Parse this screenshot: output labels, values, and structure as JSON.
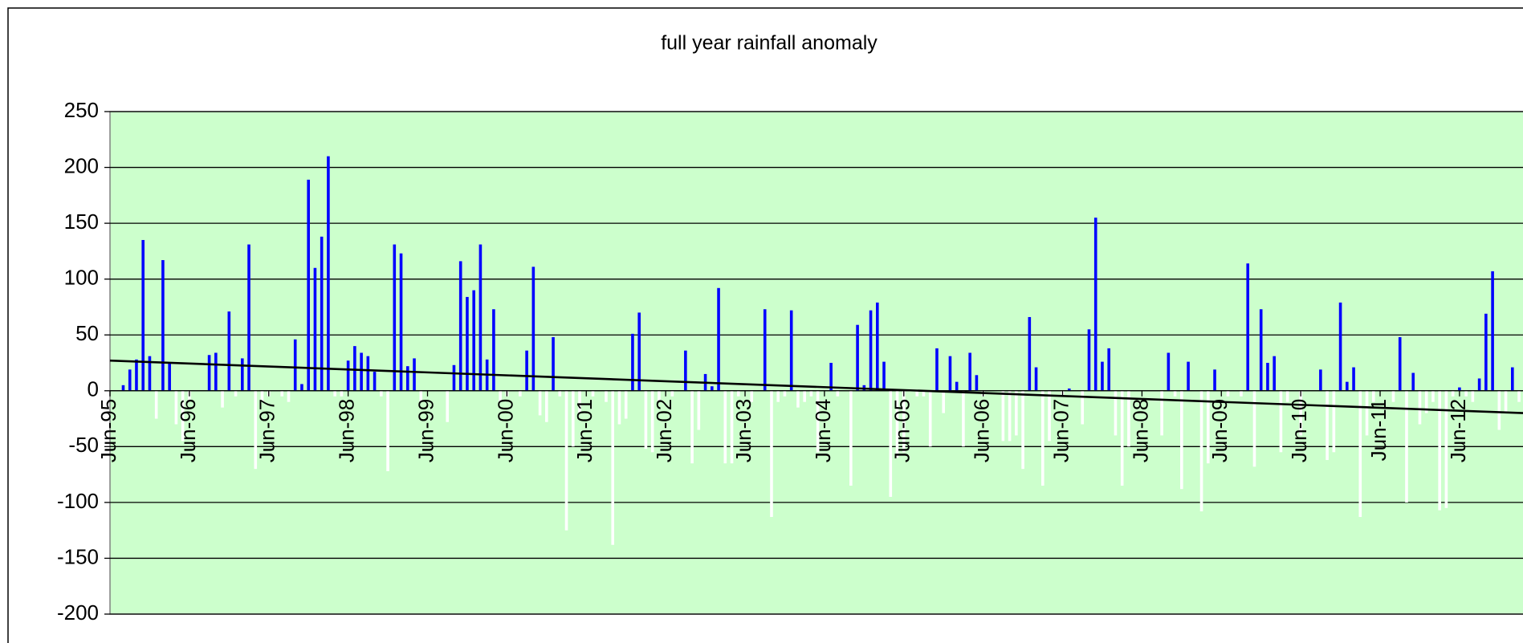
{
  "chart_data": {
    "type": "bar",
    "title": "full year rainfall anomaly",
    "categories": [
      "Jun-95",
      null,
      null,
      null,
      null,
      null,
      null,
      null,
      null,
      null,
      null,
      null,
      "Jun-96",
      null,
      null,
      null,
      null,
      null,
      null,
      null,
      null,
      null,
      null,
      null,
      "Jun-97",
      null,
      null,
      null,
      null,
      null,
      null,
      null,
      null,
      null,
      null,
      null,
      "Jun-98",
      null,
      null,
      null,
      null,
      null,
      null,
      null,
      null,
      null,
      null,
      null,
      "Jun-99",
      null,
      null,
      null,
      null,
      null,
      null,
      null,
      null,
      null,
      null,
      null,
      "Jun-00",
      null,
      null,
      null,
      null,
      null,
      null,
      null,
      null,
      null,
      null,
      null,
      "Jun-01",
      null,
      null,
      null,
      null,
      null,
      null,
      null,
      null,
      null,
      null,
      null,
      "Jun-02",
      null,
      null,
      null,
      null,
      null,
      null,
      null,
      null,
      null,
      null,
      null,
      "Jun-03",
      null,
      null,
      null,
      null,
      null,
      null,
      null,
      null,
      null,
      null,
      null,
      "Jun-04",
      null,
      null,
      null,
      null,
      null,
      null,
      null,
      null,
      null,
      null,
      null,
      "Jun-05",
      null,
      null,
      null,
      null,
      null,
      null,
      null,
      null,
      null,
      null,
      null,
      "Jun-06",
      null,
      null,
      null,
      null,
      null,
      null,
      null,
      null,
      null,
      null,
      null,
      "Jun-07",
      null,
      null,
      null,
      null,
      null,
      null,
      null,
      null,
      null,
      null,
      null,
      "Jun-08",
      null,
      null,
      null,
      null,
      null,
      null,
      null,
      null,
      null,
      null,
      null,
      "Jun-09",
      null,
      null,
      null,
      null,
      null,
      null,
      null,
      null,
      null,
      null,
      null,
      "Jun-10",
      null,
      null,
      null,
      null,
      null,
      null,
      null,
      null,
      null,
      null,
      null,
      "Jun-11",
      null,
      null,
      null,
      null,
      null,
      null,
      null,
      null,
      null,
      null,
      null,
      "Jun-12",
      null,
      null,
      null,
      null,
      null,
      null,
      null,
      null,
      null
    ],
    "values": [
      0,
      0,
      5,
      19,
      28,
      135,
      31,
      -25,
      117,
      25,
      -30,
      -45,
      -10,
      0,
      0,
      32,
      34,
      -15,
      71,
      -5,
      29,
      131,
      -70,
      -10,
      -5,
      0,
      -5,
      -10,
      46,
      6,
      189,
      110,
      138,
      210,
      -5,
      -5,
      27,
      40,
      34,
      31,
      17,
      -5,
      -72,
      131,
      123,
      22,
      29,
      -10,
      0,
      0,
      0,
      -28,
      23,
      116,
      84,
      90,
      131,
      28,
      73,
      -10,
      -5,
      0,
      -5,
      36,
      111,
      -22,
      -28,
      48,
      -5,
      -125,
      -50,
      -20,
      0,
      -5,
      0,
      -10,
      -138,
      -30,
      -25,
      51,
      70,
      -52,
      -55,
      -10,
      0,
      -5,
      0,
      36,
      -65,
      -35,
      15,
      4,
      92,
      -65,
      -65,
      -5,
      0,
      -10,
      0,
      73,
      -113,
      -10,
      -5,
      72,
      -15,
      -10,
      -5,
      -55,
      0,
      25,
      -5,
      0,
      -85,
      59,
      5,
      72,
      79,
      26,
      -95,
      -60,
      -55,
      0,
      -5,
      -5,
      -50,
      38,
      -20,
      31,
      8,
      -50,
      34,
      14,
      -5,
      0,
      0,
      -45,
      -45,
      -40,
      -70,
      66,
      21,
      -85,
      -45,
      0,
      -5,
      2,
      0,
      -30,
      55,
      155,
      26,
      38,
      -40,
      -85,
      -50,
      0,
      0,
      0,
      0,
      -40,
      34,
      -5,
      -88,
      26,
      0,
      -108,
      -65,
      19,
      0,
      -5,
      0,
      -5,
      114,
      -68,
      73,
      25,
      31,
      -55,
      -10,
      0,
      -40,
      0,
      0,
      19,
      -62,
      -55,
      79,
      8,
      21,
      -113,
      -40,
      -10,
      0,
      0,
      -10,
      48,
      -100,
      16,
      -30,
      -20,
      -10,
      -107,
      -105,
      -5,
      3,
      -5,
      -10,
      11,
      69,
      107,
      -35,
      -20,
      21,
      -10
    ],
    "positive_color": "#0000ff",
    "negative_color": "#ffffff",
    "trendline": [
      27,
      -20
    ],
    "trendline_color": "#000000",
    "plot_background": "#ccffcc",
    "ylim": [
      -200,
      250
    ],
    "yticks": [
      -200,
      -150,
      -100,
      -50,
      0,
      50,
      100,
      150,
      200,
      250
    ],
    "grid": true
  }
}
